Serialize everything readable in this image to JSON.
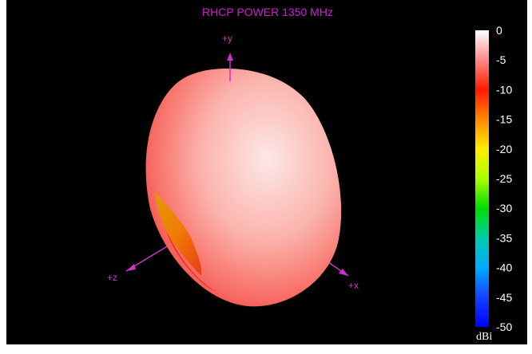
{
  "chart_data": {
    "type": "3d-surface",
    "title": "RHCP POWER 1350  MHz",
    "axes": {
      "y": "+y",
      "z": "+z",
      "x": "+x"
    },
    "colorbar": {
      "unit": "dBi",
      "ticks": [
        "0",
        "-5",
        "-10",
        "-15",
        "-20",
        "-25",
        "-30",
        "-35",
        "-40",
        "-45",
        "-50"
      ],
      "range": [
        -50,
        0
      ],
      "colors": [
        "#ffffff",
        "#ff8a8a",
        "#ff1a00",
        "#ff8800",
        "#ffee00",
        "#aaff00",
        "#00dd00",
        "#00ccaa",
        "#00aaff",
        "#1144ff",
        "#0000ff"
      ]
    },
    "colors": {
      "surface_light": "#fde2de",
      "surface_mid": "#fb8c88",
      "surface_dark": "#f0302a",
      "orange_patch": "#f08a00",
      "axis": "#cc33cc"
    }
  }
}
